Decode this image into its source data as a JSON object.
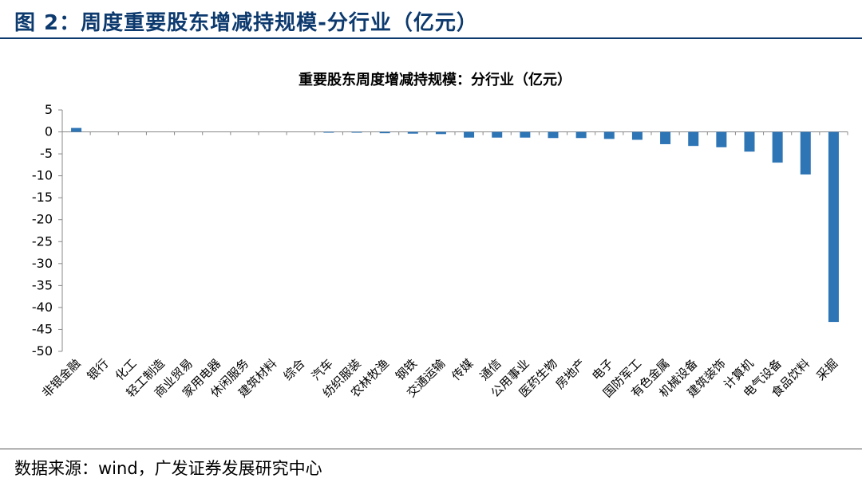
{
  "figure": {
    "title": "图 2：周度重要股东增减持规模-分行业（亿元）",
    "source": "数据来源：wind，广发证券发展研究中心"
  },
  "colors": {
    "bar": "#2e75b6",
    "header": "#0d3a6e",
    "axis": "#888888"
  },
  "chart_data": {
    "type": "bar",
    "title": "重要股东周度增减持规模：分行业（亿元）",
    "xlabel": "",
    "ylabel": "",
    "ylim": [
      -50,
      5
    ],
    "yticks": [
      5,
      0,
      -5,
      -10,
      -15,
      -20,
      -25,
      -30,
      -35,
      -40,
      -45,
      -50
    ],
    "grid": false,
    "legend": "none",
    "categories": [
      "非银金融",
      "银行",
      "化工",
      "轻工制造",
      "商业贸易",
      "家用电器",
      "休闲服务",
      "建筑材料",
      "综合",
      "汽车",
      "纺织服装",
      "农林牧渔",
      "钢铁",
      "交通运输",
      "传媒",
      "通信",
      "公用事业",
      "医药生物",
      "房地产",
      "电子",
      "国防军工",
      "有色金属",
      "机械设备",
      "建筑装饰",
      "计算机",
      "电气设备",
      "食品饮料",
      "采掘"
    ],
    "values": [
      0.9,
      0,
      0,
      0,
      0,
      0,
      0,
      0,
      0,
      -0.05,
      -0.1,
      -0.3,
      -0.4,
      -0.5,
      -1.3,
      -1.3,
      -1.3,
      -1.4,
      -1.4,
      -1.6,
      -1.8,
      -2.8,
      -3.2,
      -3.5,
      -4.5,
      -7.0,
      -9.7,
      -43.3
    ]
  }
}
